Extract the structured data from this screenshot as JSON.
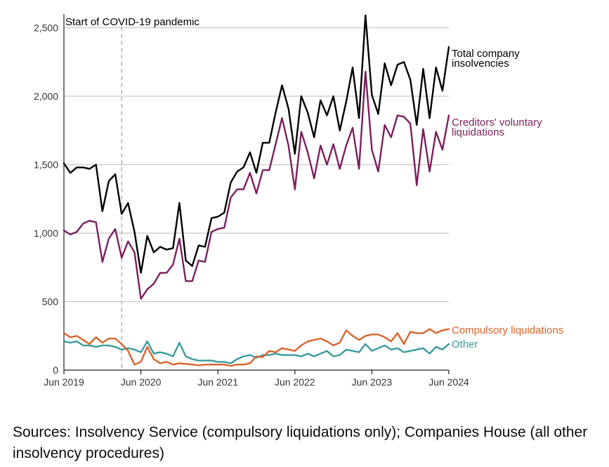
{
  "chart_data": {
    "type": "line",
    "title": "",
    "xlabel": "",
    "ylabel": "",
    "ylim": [
      0,
      2600
    ],
    "yticks": [
      0,
      500,
      1000,
      1500,
      2000,
      2500
    ],
    "ytick_labels": [
      "0",
      "500",
      "1,000",
      "1,500",
      "2,000",
      "2,500"
    ],
    "xtick_labels": [
      "Jun 2019",
      "Jun 2020",
      "Jun 2021",
      "Jun 2022",
      "Jun 2023",
      "Jun 2024"
    ],
    "xtick_month_index": [
      0,
      12,
      24,
      36,
      48,
      60
    ],
    "annotation": {
      "label": "Start of COVID-19 pandemic",
      "month_index": 9
    },
    "grid": true,
    "series": [
      {
        "name": "Total company insolvencies",
        "label_lines": [
          "Total company",
          "insolvencies"
        ],
        "color": "#000000",
        "values": [
          1510,
          1440,
          1480,
          1480,
          1470,
          1500,
          1160,
          1380,
          1430,
          1140,
          1220,
          1010,
          710,
          980,
          860,
          900,
          880,
          890,
          1220,
          800,
          760,
          910,
          900,
          1110,
          1120,
          1150,
          1370,
          1450,
          1480,
          1590,
          1440,
          1660,
          1660,
          1880,
          2080,
          1910,
          1580,
          2000,
          1880,
          1700,
          1970,
          1860,
          2000,
          1750,
          1960,
          2210,
          1840,
          2590,
          2010,
          1870,
          2240,
          2080,
          2230,
          2250,
          2120,
          1790,
          2200,
          1840,
          2210,
          2040,
          2360
        ]
      },
      {
        "name": "Creditors' voluntary liquidations",
        "label_lines": [
          "Creditors' voluntary",
          "liquidations"
        ],
        "color": "#7b1f5e",
        "values": [
          1020,
          990,
          1010,
          1070,
          1090,
          1080,
          790,
          960,
          1030,
          820,
          940,
          860,
          520,
          590,
          630,
          710,
          710,
          770,
          960,
          650,
          650,
          800,
          790,
          1010,
          1030,
          1040,
          1260,
          1320,
          1320,
          1440,
          1290,
          1460,
          1460,
          1650,
          1840,
          1640,
          1320,
          1740,
          1590,
          1400,
          1640,
          1500,
          1650,
          1470,
          1640,
          1770,
          1470,
          2180,
          1610,
          1450,
          1790,
          1700,
          1860,
          1850,
          1800,
          1350,
          1760,
          1450,
          1740,
          1610,
          1860
        ]
      },
      {
        "name": "Compulsory liquidations",
        "label_lines": [
          "Compulsory liquidations"
        ],
        "color": "#d8642c",
        "values": [
          270,
          240,
          250,
          220,
          190,
          240,
          200,
          230,
          230,
          190,
          140,
          40,
          60,
          170,
          80,
          50,
          60,
          40,
          50,
          45,
          40,
          35,
          40,
          40,
          40,
          40,
          30,
          40,
          40,
          50,
          100,
          95,
          140,
          130,
          160,
          150,
          140,
          180,
          210,
          220,
          230,
          210,
          180,
          200,
          290,
          250,
          220,
          250,
          260,
          260,
          240,
          210,
          270,
          190,
          280,
          270,
          270,
          300,
          270,
          290,
          300
        ]
      },
      {
        "name": "Other",
        "label_lines": [
          "Other"
        ],
        "color": "#3a9a9e",
        "values": [
          210,
          200,
          210,
          180,
          180,
          170,
          180,
          180,
          170,
          150,
          160,
          150,
          130,
          210,
          120,
          130,
          120,
          100,
          200,
          100,
          80,
          70,
          70,
          70,
          60,
          60,
          50,
          80,
          100,
          110,
          90,
          110,
          110,
          120,
          110,
          110,
          110,
          100,
          120,
          100,
          120,
          140,
          100,
          110,
          150,
          140,
          130,
          190,
          140,
          160,
          180,
          150,
          160,
          130,
          140,
          150,
          160,
          120,
          170,
          150,
          190
        ]
      }
    ]
  },
  "footer": {
    "sources_text": "Sources: Insolvency Service (compulsory liquidations only); Companies House (all other insolvency procedures)"
  }
}
